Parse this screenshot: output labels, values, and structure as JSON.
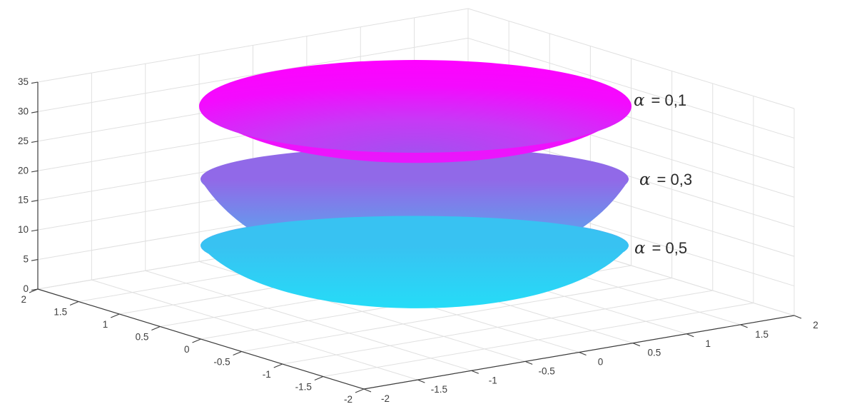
{
  "figure": {
    "background": "#FFFFFF",
    "alpha_labels": [
      {
        "symbol": "α",
        "text": "= 0,1"
      },
      {
        "symbol": "α",
        "text": "= 0,3"
      },
      {
        "symbol": "α",
        "text": "= 0,5"
      }
    ]
  },
  "chart_data": {
    "type": "surface",
    "title": "",
    "description": "Three nested upward-opening 3D funnel/cone surfaces rendered MATLAB-style with the cool colormap (cyan at z=0 grading to magenta at z=35). Each surface corresponds to a different alpha value; smaller alpha gives a taller funnel. All funnels have their vertex near the origin (z≈0) and flare out to an elliptical rim of radius ≈2 in x and y.",
    "projection": "3d",
    "grid": true,
    "background": "#FFFFFF",
    "colormap": {
      "name": "cool",
      "low_z_color": "#00FFFF",
      "high_z_color": "#FF00FF"
    },
    "x_axis": {
      "range": [
        -2,
        2
      ],
      "tick_step": 0.5,
      "tick_labels": [
        "-2",
        "-1.5",
        "-1",
        "-0.5",
        "0",
        "0.5",
        "1",
        "1.5",
        "2"
      ]
    },
    "y_axis": {
      "range": [
        -2,
        2
      ],
      "tick_step": 0.5,
      "tick_labels": [
        "2",
        "1.5",
        "1",
        "0.5",
        "0",
        "-0.5",
        "-1",
        "-1.5",
        "-2"
      ]
    },
    "z_axis": {
      "range": [
        0,
        35
      ],
      "tick_step": 5,
      "tick_labels": [
        "0",
        "5",
        "10",
        "15",
        "20",
        "25",
        "30",
        "35"
      ]
    },
    "surfaces": [
      {
        "alpha": 0.1,
        "label": "α = 0,1",
        "rim_z": 31,
        "rim_radius": 2,
        "apex_z": 0,
        "rim_color": "#FB00FE"
      },
      {
        "alpha": 0.3,
        "label": "α = 0,3",
        "rim_z": 18.5,
        "rim_radius": 2,
        "apex_z": 0,
        "rim_color": "#8F6FE8"
      },
      {
        "alpha": 0.5,
        "label": "α = 0,5",
        "rim_z": 7.4,
        "rim_radius": 2,
        "apex_z": 0,
        "rim_color": "#3DC4F3"
      }
    ]
  }
}
